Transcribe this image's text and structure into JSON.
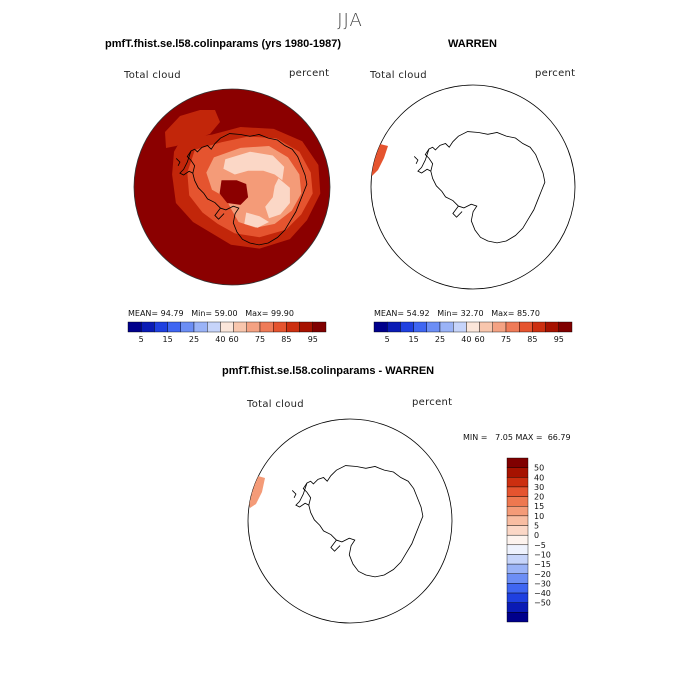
{
  "figure": {
    "title": "JJA"
  },
  "panels": [
    {
      "title": "pmfT.fhist.se.l58.colinparams (yrs 1980-1987)",
      "variable": "Total cloud",
      "units": "percent",
      "stats": {
        "mean_label": "MEAN=",
        "mean": "94.79",
        "min_label": "Min=",
        "min": "59.00",
        "max_label": "Max=",
        "max": "99.90"
      }
    },
    {
      "title": "WARREN",
      "variable": "Total cloud",
      "units": "percent",
      "stats": {
        "mean_label": "MEAN=",
        "mean": "54.92",
        "min_label": "Min=",
        "min": "32.70",
        "max_label": "Max=",
        "max": "85.70"
      }
    },
    {
      "title": "pmfT.fhist.se.l58.colinparams - WARREN",
      "variable": "Total cloud",
      "units": "percent",
      "stats": {
        "min_label": "MIN =",
        "min": "7.05",
        "max_label": "MAX =",
        "max": "66.79"
      }
    }
  ],
  "colorbar_abs": {
    "colors": [
      "#00008b",
      "#0a1bb5",
      "#1f40e0",
      "#3f66f2",
      "#6c8ef5",
      "#9ab3f7",
      "#c6d4fa",
      "#fbe6da",
      "#f8c6ad",
      "#f4a283",
      "#ef7b58",
      "#e5542f",
      "#cc2f10",
      "#a61200",
      "#800000"
    ],
    "tick_labels": [
      "5",
      "15",
      "25",
      "40",
      "60",
      "75",
      "85",
      "95"
    ]
  },
  "colorbar_diff": {
    "colors": [
      "#00008b",
      "#0a1bb5",
      "#1f40e0",
      "#3f66f2",
      "#6c8ef5",
      "#9ab3f7",
      "#c6d4fa",
      "#eef2fd",
      "#fdf3ee",
      "#fbd7c6",
      "#f8bda2",
      "#f49b78",
      "#ee7850",
      "#e5542f",
      "#cc2f10",
      "#a61200",
      "#800000"
    ],
    "tick_labels": [
      "50",
      "40",
      "30",
      "20",
      "15",
      "10",
      "5",
      "0",
      "−5",
      "−10",
      "−15",
      "−20",
      "−30",
      "−40",
      "−50"
    ]
  },
  "map_colors": {
    "ocean_high": "#8b0000",
    "level_1": "#c2260a",
    "level_2": "#e5542f",
    "level_3": "#f49b78",
    "level_4": "#fbd7c6",
    "coast": "#000000"
  }
}
